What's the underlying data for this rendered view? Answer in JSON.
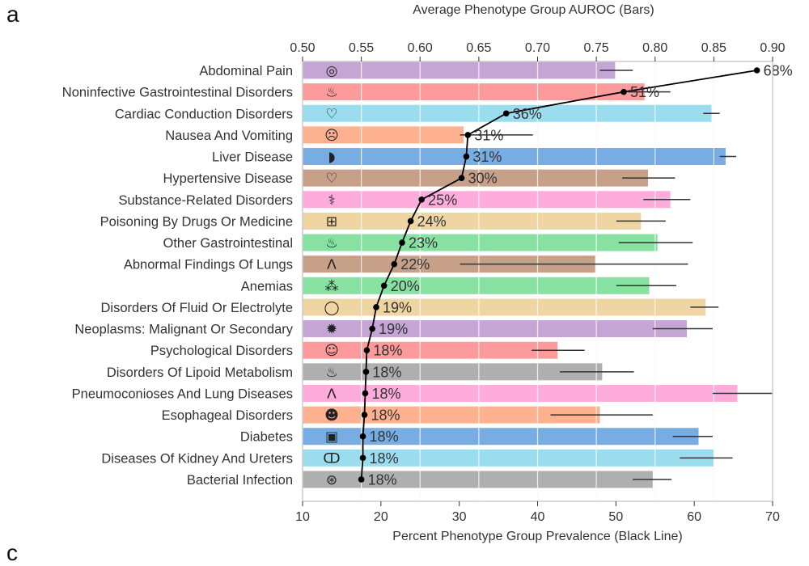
{
  "panel_labels": {
    "a": "a",
    "c": "c"
  },
  "chart_data": {
    "type": "bar",
    "title": "",
    "top_axis": {
      "label": "Average Phenotype Group AUROC (Bars)",
      "range": [
        0.5,
        0.9
      ],
      "ticks": [
        "0.50",
        "0.55",
        "0.60",
        "0.65",
        "0.70",
        "0.75",
        "0.80",
        "0.85",
        "0.90"
      ]
    },
    "bottom_axis": {
      "label": "Percent Phenotype Group Prevalence (Black Line)",
      "range": [
        10,
        70
      ],
      "ticks": [
        "10",
        "20",
        "30",
        "40",
        "50",
        "60",
        "70"
      ]
    },
    "grid": true,
    "categories": [
      {
        "name": "Abdominal Pain",
        "icon": "target-pain-icon",
        "color": "#c5a5d4",
        "auroc": 0.766,
        "err": [
          0.753,
          0.781
        ],
        "prevalence": 68,
        "prevalence_label": "68%"
      },
      {
        "name": "Noninfective Gastrointestinal Disorders",
        "icon": "stomach-icon",
        "color": "#fd9a9c",
        "auroc": 0.791,
        "err": [
          0.777,
          0.813
        ],
        "prevalence": 51,
        "prevalence_label": "51%"
      },
      {
        "name": "Cardiac Conduction Disorders",
        "icon": "heart-icon",
        "color": "#9bdcee",
        "auroc": 0.848,
        "err": [
          0.841,
          0.855
        ],
        "prevalence": 36,
        "prevalence_label": "36%"
      },
      {
        "name": "Nausea And Vomiting",
        "icon": "nausea-face-icon",
        "color": "#feb18f",
        "auroc": 0.637,
        "err": [
          0.634,
          0.696
        ],
        "prevalence": 31.1,
        "prevalence_label": "31%"
      },
      {
        "name": "Liver Disease",
        "icon": "liver-icon",
        "color": "#78ade4",
        "auroc": 0.86,
        "err": [
          0.855,
          0.869
        ],
        "prevalence": 30.9,
        "prevalence_label": "31%"
      },
      {
        "name": "Hypertensive Disease",
        "icon": "heart-pulse-icon",
        "color": "#c6a089",
        "auroc": 0.794,
        "err": [
          0.772,
          0.817
        ],
        "prevalence": 30.3,
        "prevalence_label": "30%"
      },
      {
        "name": "Substance-Related Disorders",
        "icon": "syringe-pills-icon",
        "color": "#feacdb",
        "auroc": 0.813,
        "err": [
          0.79,
          0.83
        ],
        "prevalence": 25.2,
        "prevalence_label": "25%"
      },
      {
        "name": "Poisoning By Drugs Or Medicine",
        "icon": "pill-bottle-icon",
        "color": "#efd5a2",
        "auroc": 0.788,
        "err": [
          0.767,
          0.809
        ],
        "prevalence": 23.8,
        "prevalence_label": "24%"
      },
      {
        "name": "Other Gastrointestinal",
        "icon": "stomach-icon",
        "color": "#87e2a2",
        "auroc": 0.802,
        "err": [
          0.769,
          0.832
        ],
        "prevalence": 22.7,
        "prevalence_label": "23%"
      },
      {
        "name": "Abnormal Findings Of Lungs",
        "icon": "lungs-icon",
        "color": "#c6a089",
        "auroc": 0.749,
        "err": [
          0.634,
          0.828
        ],
        "prevalence": 21.7,
        "prevalence_label": "22%"
      },
      {
        "name": "Anemias",
        "icon": "blood-cells-icon",
        "color": "#87e2a2",
        "auroc": 0.795,
        "err": [
          0.767,
          0.818
        ],
        "prevalence": 20.4,
        "prevalence_label": "20%"
      },
      {
        "name": "Disorders Of Fluid Or Electrolyte",
        "icon": "drop-icon",
        "color": "#efd5a2",
        "auroc": 0.843,
        "err": [
          0.83,
          0.854
        ],
        "prevalence": 19.4,
        "prevalence_label": "19%"
      },
      {
        "name": "Neoplasms: Malignant Or Secondary",
        "icon": "cancer-cell-icon",
        "color": "#c5a5d4",
        "auroc": 0.827,
        "err": [
          0.798,
          0.849
        ],
        "prevalence": 18.9,
        "prevalence_label": "19%"
      },
      {
        "name": "Psychological Disorders",
        "icon": "head-brain-icon",
        "color": "#fd9a9c",
        "auroc": 0.717,
        "err": [
          0.695,
          0.74
        ],
        "prevalence": 18.2,
        "prevalence_label": "18%"
      },
      {
        "name": "Disorders Of Lipoid Metabolism",
        "icon": "fat-pill-icon",
        "color": "#afafaf",
        "auroc": 0.755,
        "err": [
          0.719,
          0.782
        ],
        "prevalence": 18.1,
        "prevalence_label": "18%"
      },
      {
        "name": "Pneumoconioses And Lung Diseases",
        "icon": "lungs-icon",
        "color": "#feacdb",
        "auroc": 0.87,
        "err": [
          0.849,
          0.9
        ],
        "prevalence": 18.0,
        "prevalence_label": "18%"
      },
      {
        "name": "Esophageal Disorders",
        "icon": "throat-icon",
        "color": "#feb18f",
        "auroc": 0.753,
        "err": [
          0.711,
          0.798
        ],
        "prevalence": 17.9,
        "prevalence_label": "18%"
      },
      {
        "name": "Diabetes",
        "icon": "glucose-meter-icon",
        "color": "#78ade4",
        "auroc": 0.837,
        "err": [
          0.815,
          0.849
        ],
        "prevalence": 17.7,
        "prevalence_label": "18%"
      },
      {
        "name": "Diseases Of Kidney And Ureters",
        "icon": "kidneys-icon",
        "color": "#9bdcee",
        "auroc": 0.85,
        "err": [
          0.821,
          0.866
        ],
        "prevalence": 17.7,
        "prevalence_label": "18%"
      },
      {
        "name": "Bacterial Infection",
        "icon": "bacteria-petri-icon",
        "color": "#afafaf",
        "auroc": 0.798,
        "err": [
          0.781,
          0.814
        ],
        "prevalence": 17.5,
        "prevalence_label": "18%"
      }
    ]
  }
}
